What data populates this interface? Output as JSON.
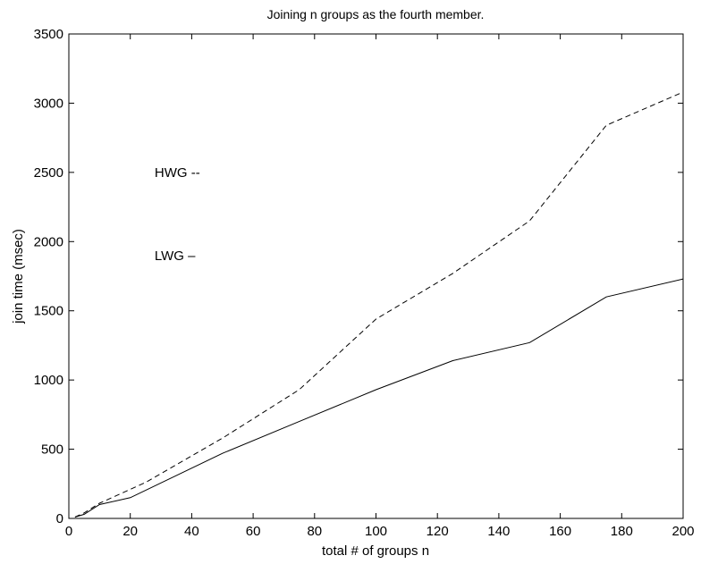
{
  "chart_data": {
    "type": "line",
    "title": "Joining n groups as the fourth member.",
    "xlabel": "total # of groups n",
    "ylabel": "join time (msec)",
    "xlim": [
      0,
      200
    ],
    "ylim": [
      0,
      3500
    ],
    "xticks": [
      0,
      20,
      40,
      60,
      80,
      100,
      120,
      140,
      160,
      180,
      200
    ],
    "yticks": [
      0,
      500,
      1000,
      1500,
      2000,
      2500,
      3000,
      3500
    ],
    "grid": false,
    "series": [
      {
        "name": "HWG",
        "dash": "dashed",
        "x": [
          2,
          5,
          10,
          25,
          50,
          75,
          100,
          125,
          150,
          175,
          200
        ],
        "y": [
          10,
          40,
          110,
          260,
          580,
          930,
          1440,
          1770,
          2150,
          2840,
          3080
        ]
      },
      {
        "name": "LWG",
        "dash": "solid",
        "x": [
          2,
          5,
          10,
          20,
          50,
          75,
          100,
          125,
          150,
          175,
          200
        ],
        "y": [
          10,
          30,
          100,
          150,
          470,
          700,
          930,
          1140,
          1270,
          1600,
          1730
        ]
      }
    ],
    "annotations": [
      {
        "text": "HWG --",
        "x": 25,
        "y": 2500
      },
      {
        "text": "LWG –",
        "x": 25,
        "y": 1900
      }
    ]
  }
}
